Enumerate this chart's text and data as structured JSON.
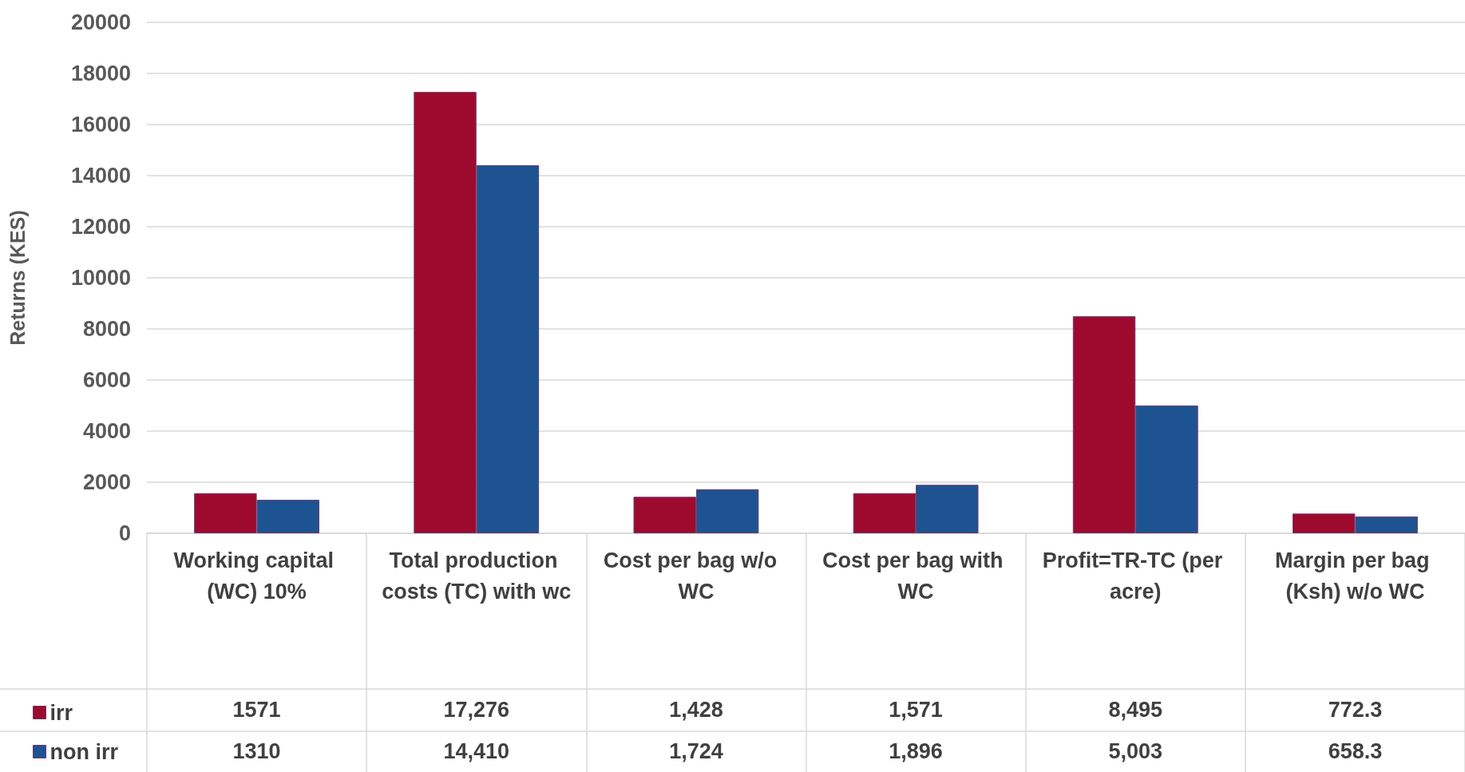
{
  "chart_data": {
    "type": "bar",
    "ylabel": "Returns (KES)",
    "categories": [
      "Working capital (WC) 10%",
      "Total production costs (TC) with wc",
      "Cost per bag w/o  WC",
      "Cost per bag with WC",
      "Profit=TR-TC (per acre)",
      "Margin per bag (Ksh) w/o WC"
    ],
    "series": [
      {
        "name": "irr",
        "color": "#9e0a2e",
        "values": [
          1571,
          17276,
          1428,
          1571,
          8495,
          772.3
        ],
        "value_labels": [
          "1571",
          "17,276",
          "1,428",
          "1,571",
          "8,495",
          "772.3"
        ]
      },
      {
        "name": "non irr",
        "color": "#1d5390",
        "values": [
          1310,
          14410,
          1724,
          1896,
          5003,
          658.3
        ],
        "value_labels": [
          "1310",
          "14,410",
          "1,724",
          "1,896",
          "5,003",
          "658.3"
        ]
      }
    ],
    "ylim": [
      0,
      20000
    ],
    "yticks": [
      0,
      2000,
      4000,
      6000,
      8000,
      10000,
      12000,
      14000,
      16000,
      18000,
      20000
    ],
    "grid": "y",
    "legend": "bottom left"
  }
}
